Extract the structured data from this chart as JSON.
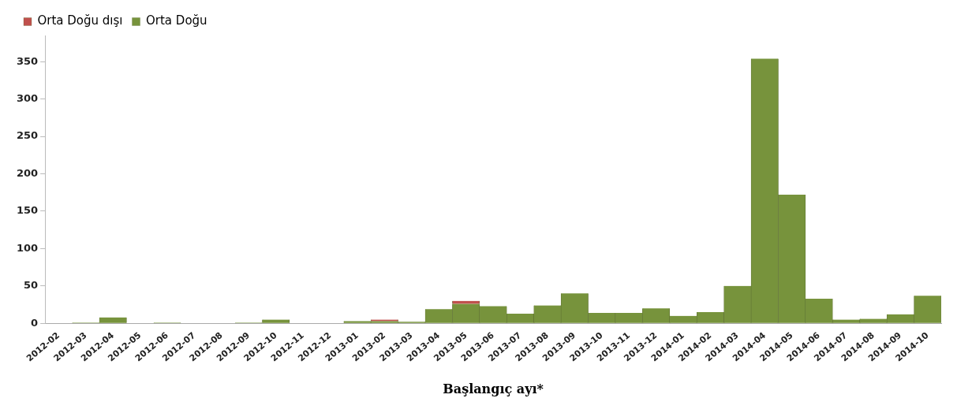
{
  "chart_data": {
    "type": "bar",
    "stacked": true,
    "xlabel": "Başlangıç ayı*",
    "categories": [
      "2012-02",
      "2012-03",
      "2012-04",
      "2012-05",
      "2012-06",
      "2012-07",
      "2012-08",
      "2012-09",
      "2012-10",
      "2012-11",
      "2012-12",
      "2013-01",
      "2013-02",
      "2013-03",
      "2013-04",
      "2013-05",
      "2013-06",
      "2013-07",
      "2013-08",
      "2013-09",
      "2013-10",
      "2013-11",
      "2013-12",
      "2014-01",
      "2014-02",
      "2014-03",
      "2014-04",
      "2014-05",
      "2014-06",
      "2014-07",
      "2014-08",
      "2014-09",
      "2014-10"
    ],
    "series": [
      {
        "name": "Orta Doğu",
        "color": "#77933c",
        "values": [
          0,
          1,
          8,
          0,
          1,
          0,
          0,
          1,
          5,
          0,
          0,
          3,
          3,
          2,
          19,
          26,
          23,
          13,
          24,
          40,
          14,
          14,
          20,
          10,
          15,
          50,
          354,
          172,
          33,
          5,
          6,
          12,
          37
        ]
      },
      {
        "name": "Orta Doğu dışı",
        "color": "#c0504d",
        "values": [
          0,
          0,
          0,
          0,
          0,
          0,
          0,
          0,
          0,
          0,
          0,
          0,
          2,
          0,
          0,
          4,
          0,
          0,
          0,
          0,
          0,
          0,
          0,
          0,
          0,
          0,
          0,
          0,
          0,
          0,
          0,
          0,
          0
        ]
      }
    ],
    "ylim": [
      0,
      385
    ],
    "yticks": [
      0,
      50,
      100,
      150,
      200,
      250,
      300,
      350
    ],
    "grid": false,
    "legend": "top left"
  }
}
